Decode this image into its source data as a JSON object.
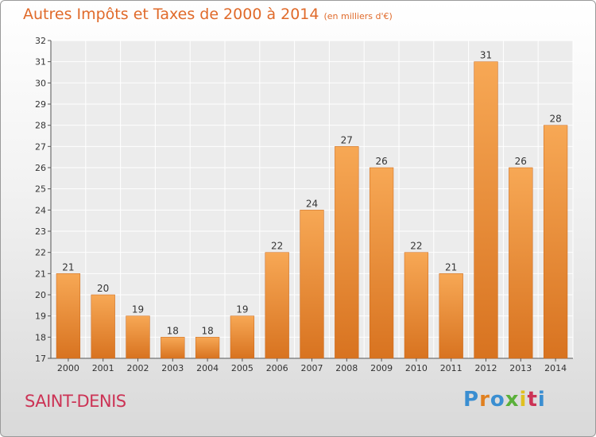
{
  "title": {
    "main": "Autres Impôts et Taxes de 2000 à 2014",
    "sub": "(en milliers d'€)"
  },
  "place": "SAINT-DENIS",
  "logo": {
    "text": "Proxiti",
    "letters": [
      "P",
      "r",
      "o",
      "x",
      "i",
      "t",
      "i"
    ]
  },
  "chart_data": {
    "type": "bar",
    "title": "Autres Impôts et Taxes de 2000 à 2014",
    "subtitle": "(en milliers d'€)",
    "xlabel": "",
    "ylabel": "",
    "categories": [
      "2000",
      "2001",
      "2002",
      "2003",
      "2004",
      "2005",
      "2006",
      "2007",
      "2008",
      "2009",
      "2010",
      "2011",
      "2012",
      "2013",
      "2014"
    ],
    "values": [
      21,
      20,
      19,
      18,
      18,
      19,
      22,
      24,
      27,
      26,
      22,
      21,
      31,
      26,
      28
    ],
    "ylim": [
      17,
      32
    ],
    "yticks": [
      17,
      18,
      19,
      20,
      21,
      22,
      23,
      24,
      25,
      26,
      27,
      28,
      29,
      30,
      31,
      32
    ],
    "grid": true,
    "bar_color_top": "#f7a855",
    "bar_color_bottom": "#d87320"
  }
}
